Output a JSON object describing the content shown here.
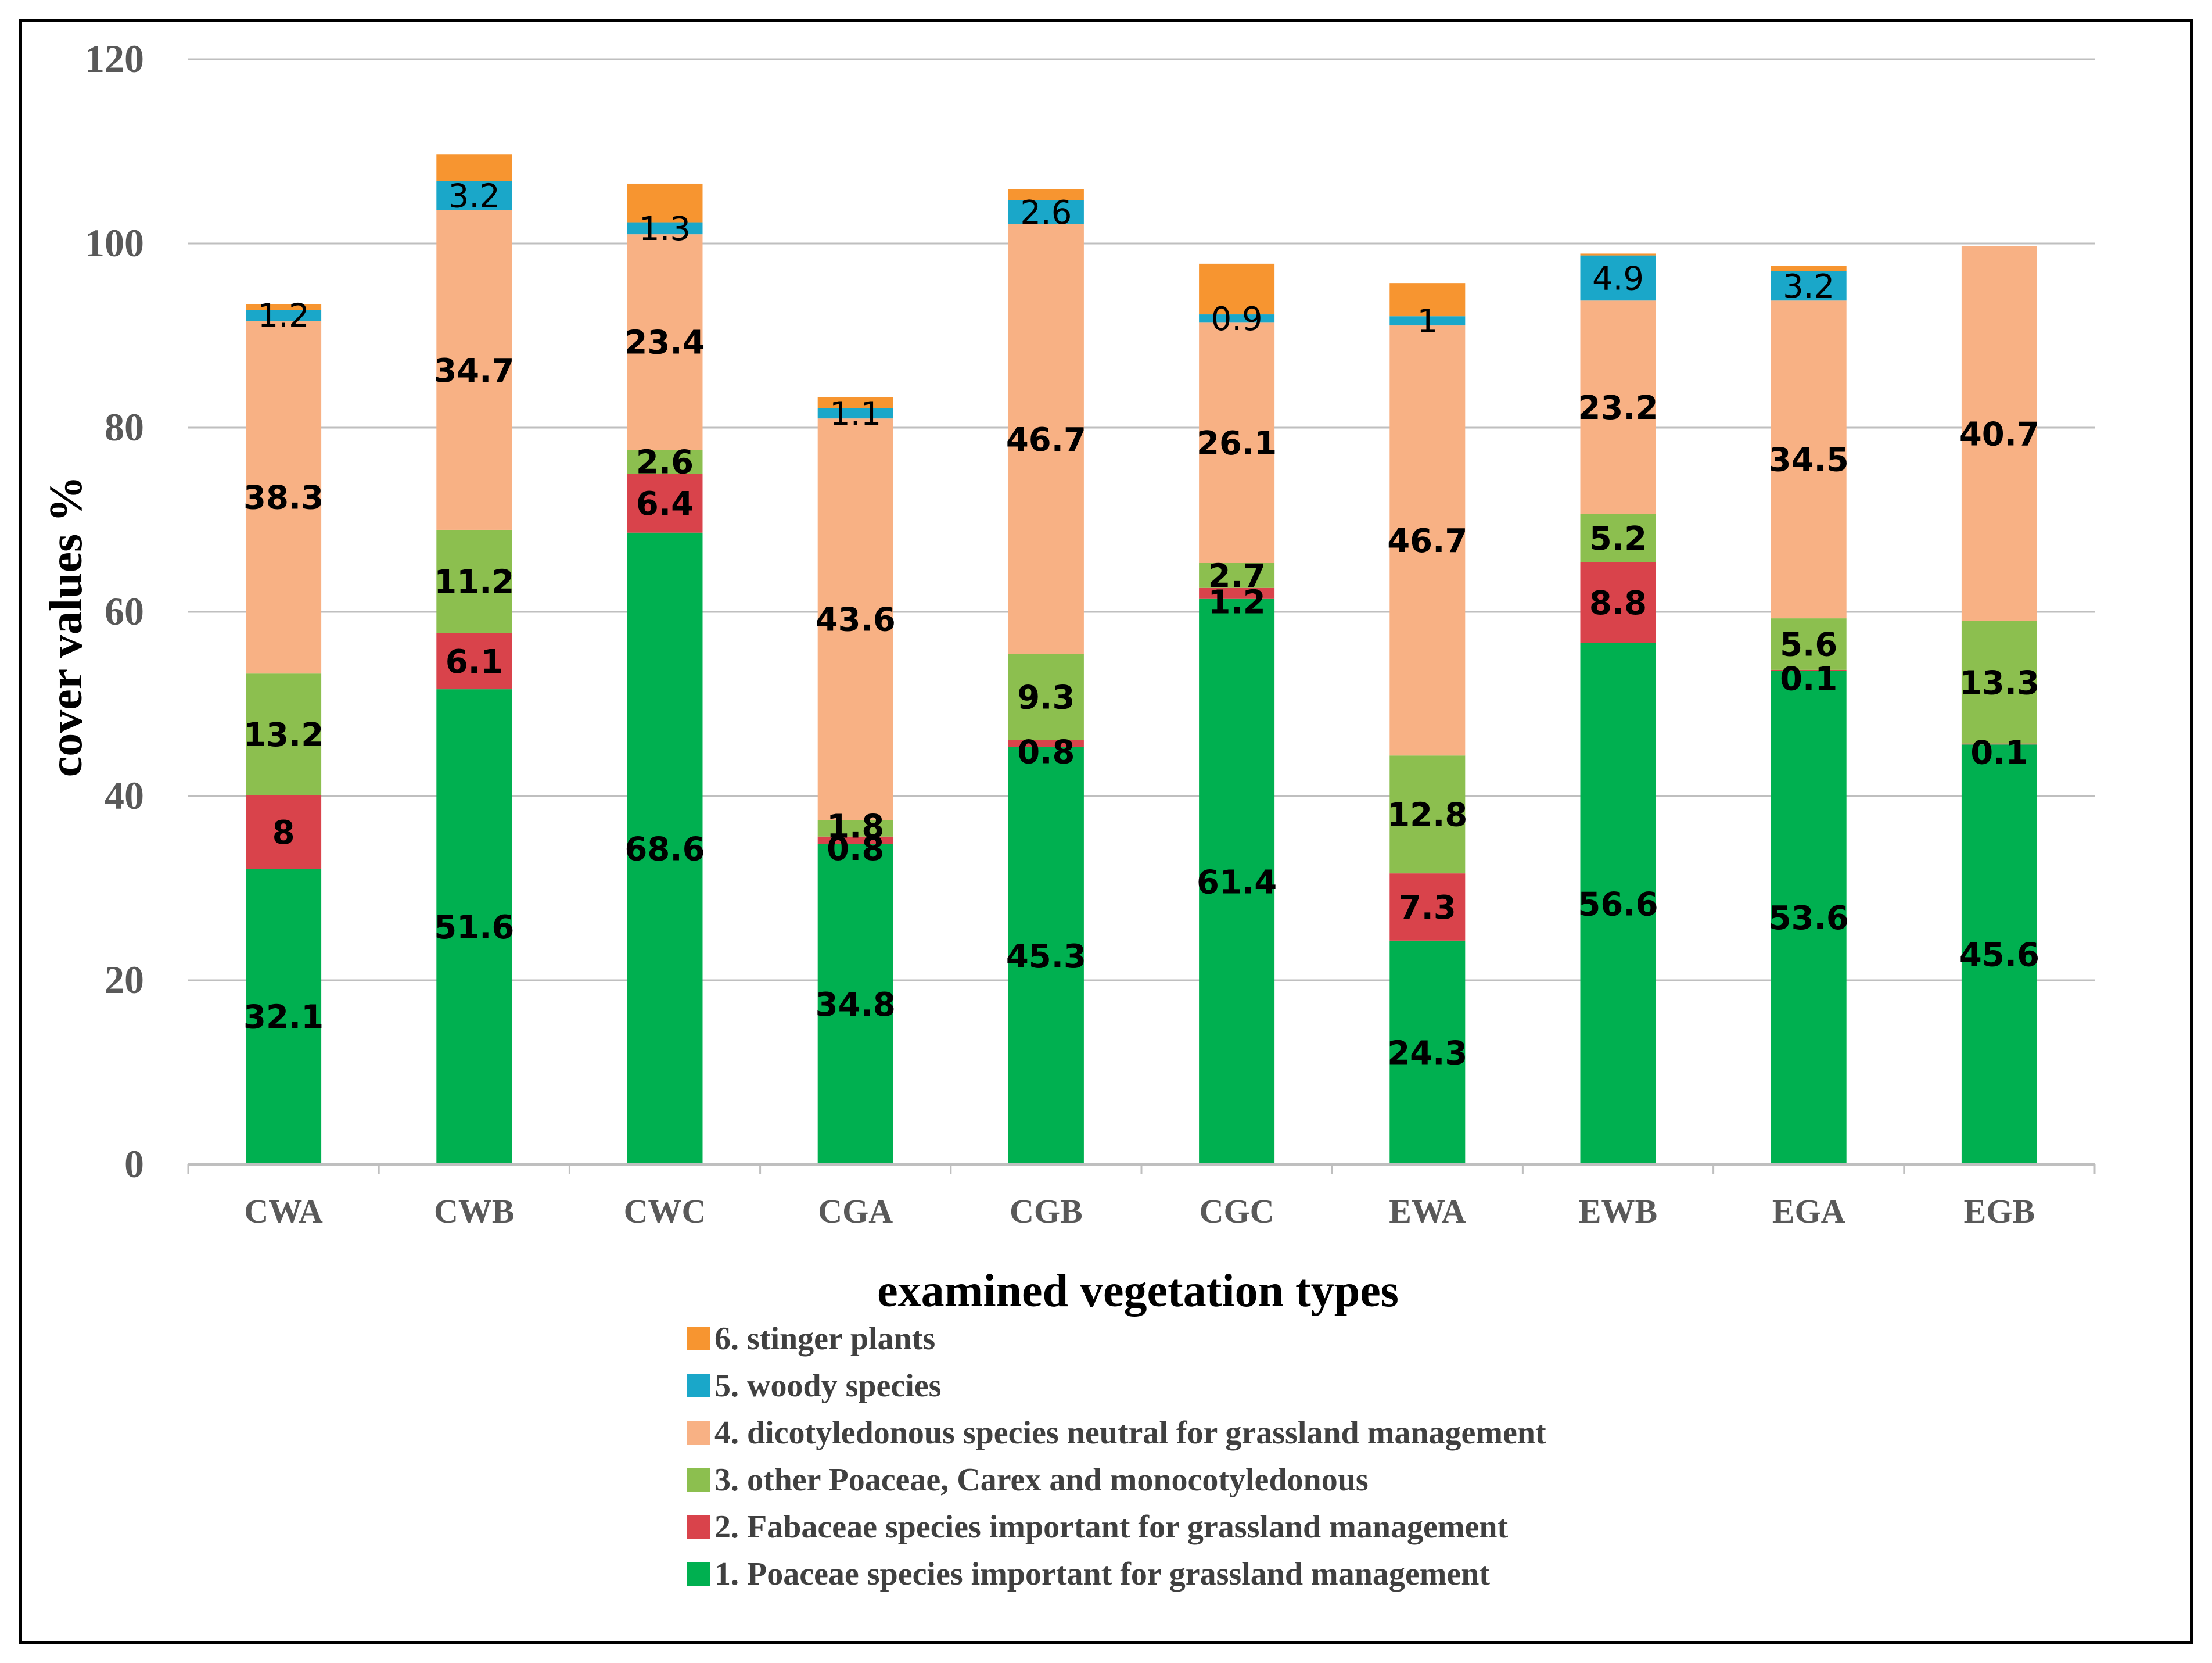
{
  "chart_data": {
    "type": "bar",
    "stacked": true,
    "title": "",
    "xlabel": "examined vegetation types",
    "ylabel": "cover values %",
    "ylim": [
      0,
      120
    ],
    "yticks": [
      0,
      20,
      40,
      60,
      80,
      100,
      120
    ],
    "grid": true,
    "legend_position": "bottom",
    "categories": [
      "CWA",
      "CWB",
      "CWC",
      "CGA",
      "CGB",
      "CGC",
      "EWA",
      "EWB",
      "EGA",
      "EGB"
    ],
    "series": [
      {
        "name": "1. Poaceae species important for grassland management",
        "color": "#00b050",
        "values": [
          32.1,
          51.6,
          68.6,
          34.8,
          45.3,
          61.4,
          24.3,
          56.6,
          53.6,
          45.6
        ],
        "labels": [
          "32.1",
          "51.6",
          "68.6",
          "34.8",
          "45.3",
          "61.4",
          "24.3",
          "56.6",
          "53.6",
          "45.6"
        ]
      },
      {
        "name": "2. Fabaceae species important for grassland management",
        "color": "#d9434b",
        "values": [
          8,
          6.1,
          6.4,
          0.8,
          0.8,
          1.2,
          7.3,
          8.8,
          0.1,
          0.1
        ],
        "labels": [
          "8",
          "6.1",
          "6.4",
          "0.8",
          "0.8",
          "1.2",
          "7.3",
          "8.8",
          "0.1",
          "0.1"
        ]
      },
      {
        "name": "3. other Poaceae, Carex and monocotyledonous",
        "color": "#8cbf4f",
        "values": [
          13.2,
          11.2,
          2.6,
          1.8,
          9.3,
          2.7,
          12.8,
          5.2,
          5.6,
          13.3
        ],
        "labels": [
          "13.2",
          "11.2",
          "2.6",
          "1.8",
          "9.3",
          "2.7",
          "12.8",
          "5.2",
          "5.6",
          "13.3"
        ]
      },
      {
        "name": "4. dicotyledonous species neutral for grassland management",
        "color": "#f8b184",
        "values": [
          38.3,
          34.7,
          23.4,
          43.6,
          46.7,
          26.1,
          46.7,
          23.2,
          34.5,
          40.7
        ],
        "labels": [
          "38.3",
          "34.7",
          "23.4",
          "43.6",
          "46.7",
          "26.1",
          "46.7",
          "23.2",
          "34.5",
          "40.7"
        ]
      },
      {
        "name": "5. woody species",
        "color": "#1aa7c9",
        "values": [
          1.2,
          3.2,
          1.3,
          1.1,
          2.6,
          0.9,
          1,
          4.9,
          3.2,
          0
        ],
        "labels": [
          "1.2",
          "3.2",
          "1.3",
          "1.1",
          "2.6",
          "0.9",
          "1",
          "4.9",
          "3.2",
          ""
        ]
      },
      {
        "name": "6. stinger plants",
        "color": "#f79530",
        "values": [
          0.6,
          2.9,
          4.2,
          1.2,
          1.2,
          5.5,
          3.6,
          0.2,
          0.6,
          0
        ],
        "labels": [
          "",
          "",
          "",
          "",
          "",
          "",
          "",
          "",
          "",
          ""
        ]
      }
    ]
  }
}
